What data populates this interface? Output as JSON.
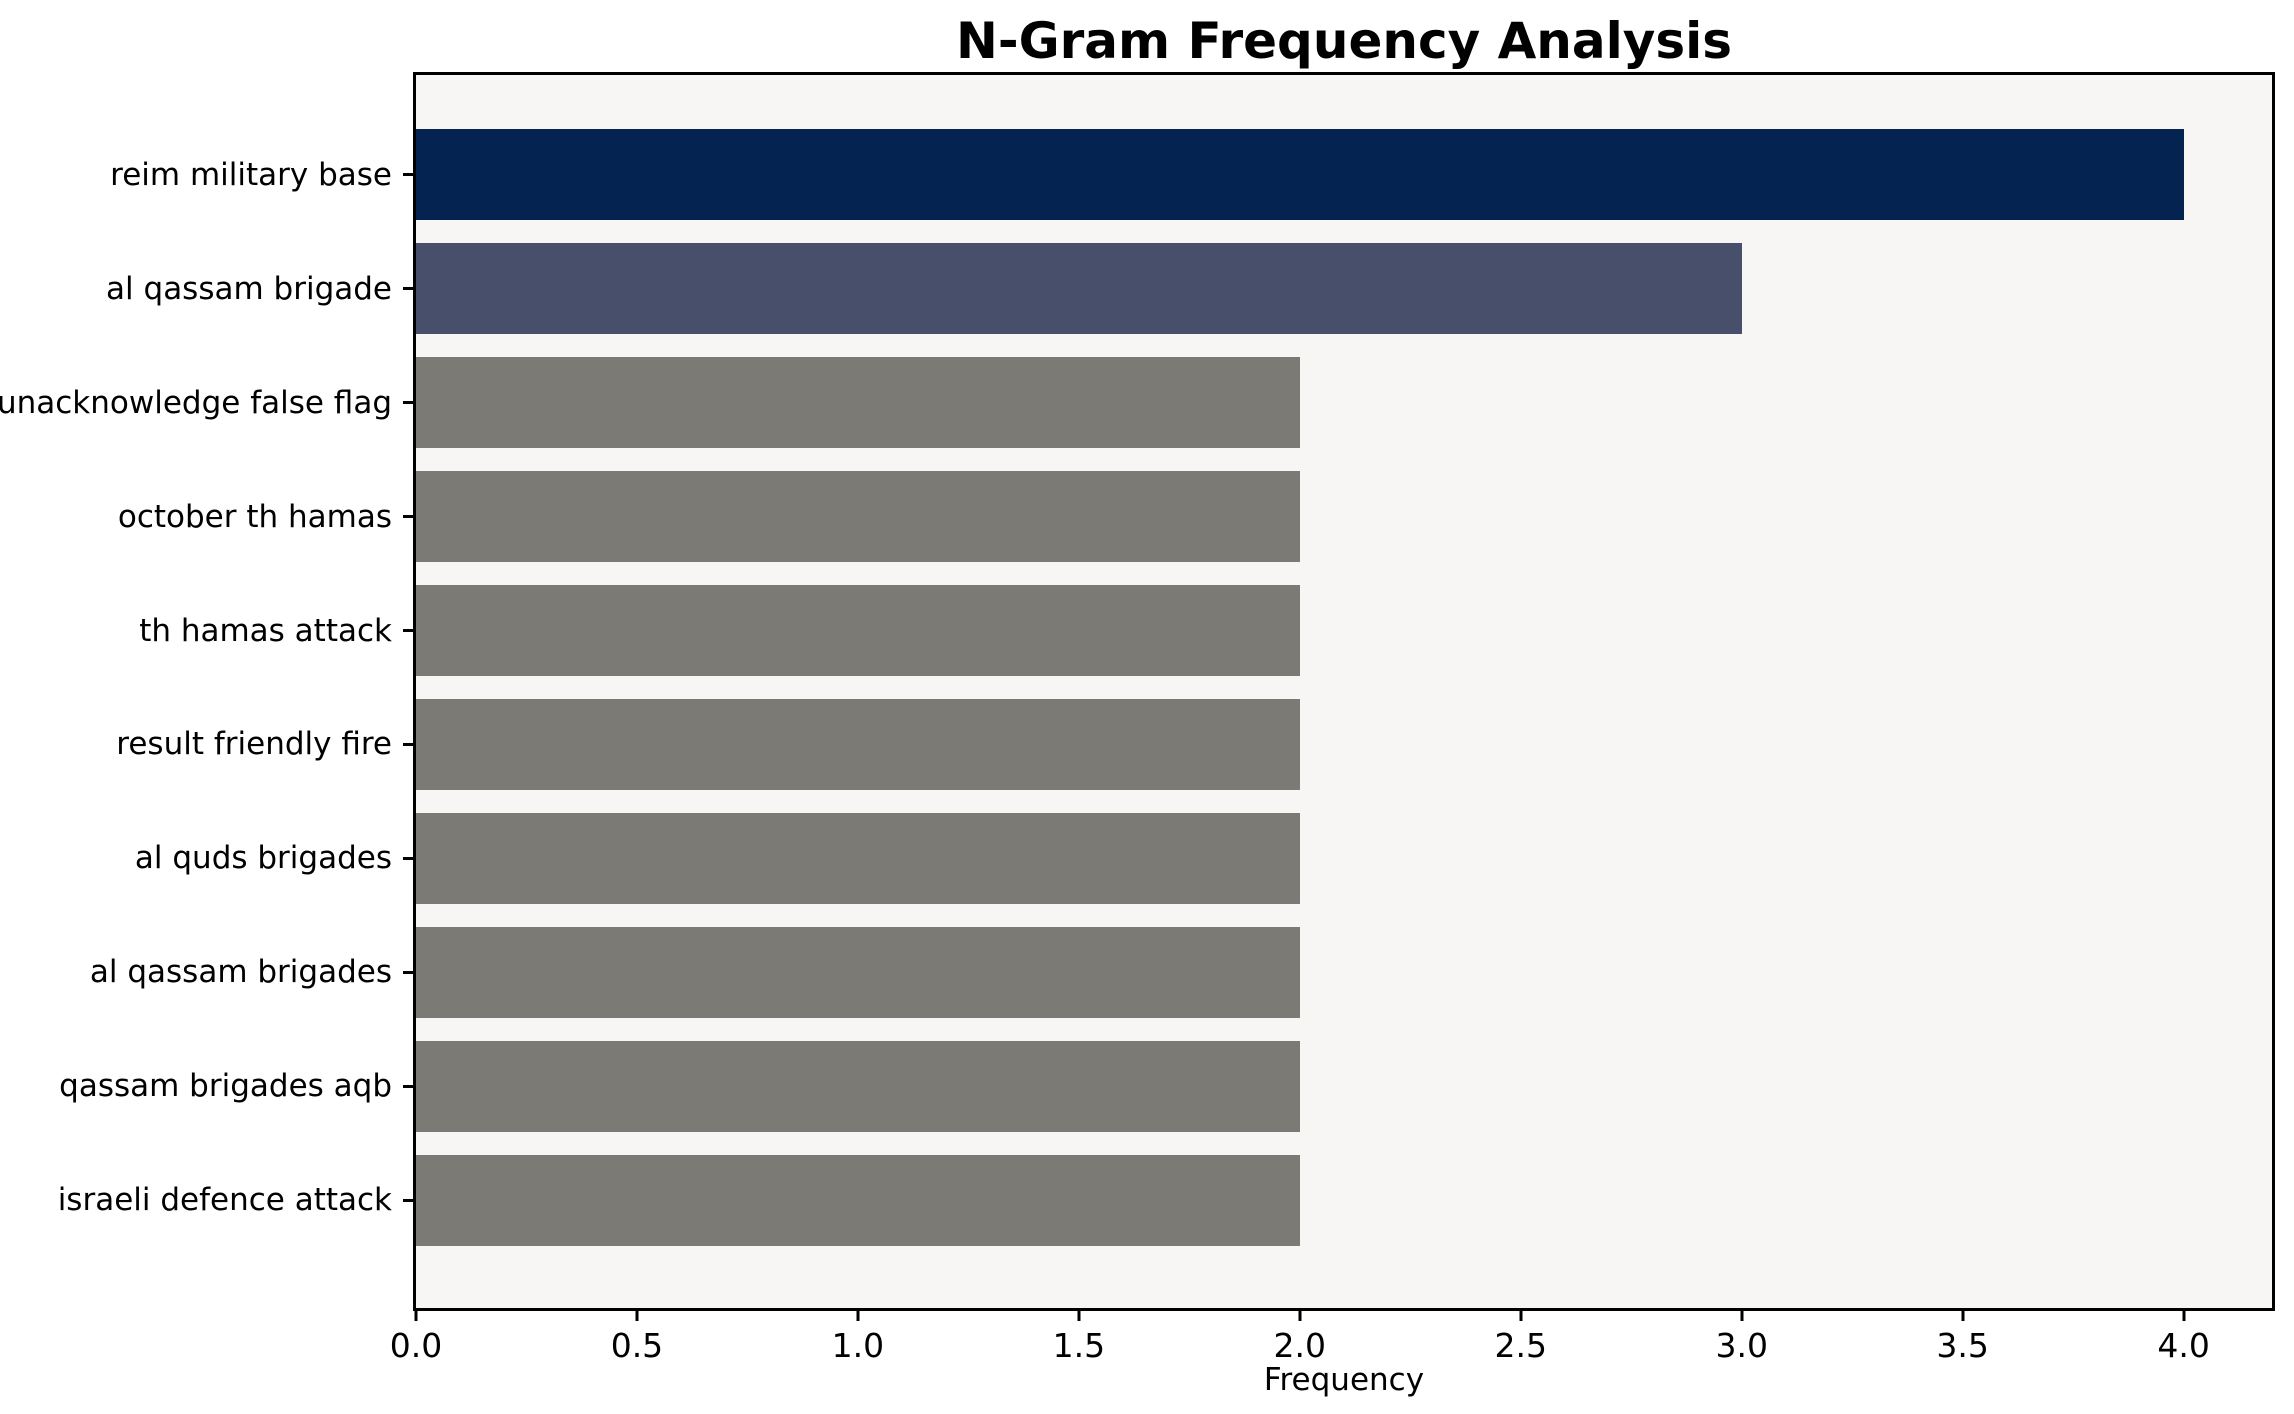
{
  "chart_data": {
    "type": "bar",
    "orientation": "horizontal",
    "title": "N-Gram Frequency Analysis",
    "xlabel": "Frequency",
    "ylabel": "",
    "categories": [
      "reim military base",
      "al qassam brigade",
      "unacknowledge false flag",
      "october th hamas",
      "th hamas attack",
      "result friendly fire",
      "al quds brigades",
      "al qassam brigades",
      "qassam brigades aqb",
      "israeli defence attack"
    ],
    "values": [
      4,
      3,
      2,
      2,
      2,
      2,
      2,
      2,
      2,
      2
    ],
    "xlim": [
      0,
      4.2
    ],
    "xtick_labels": [
      "0.0",
      "0.5",
      "1.0",
      "1.5",
      "2.0",
      "2.5",
      "3.0",
      "3.5",
      "4.0"
    ],
    "xtick_values": [
      0,
      0.5,
      1,
      1.5,
      2,
      2.5,
      3,
      3.5,
      4
    ],
    "grid": false,
    "legend_position": "none",
    "colors": {
      "bar_colors": [
        "#042350",
        "#474f6b",
        "#7b7a75",
        "#7b7a75",
        "#7b7a75",
        "#7b7a75",
        "#7b7a75",
        "#7b7a75",
        "#7b7a75",
        "#7b7a75"
      ],
      "plot_background": "#f7f6f5",
      "figure_background": "#ffffff",
      "spine_color": "#000000",
      "text_color": "#000000"
    }
  }
}
